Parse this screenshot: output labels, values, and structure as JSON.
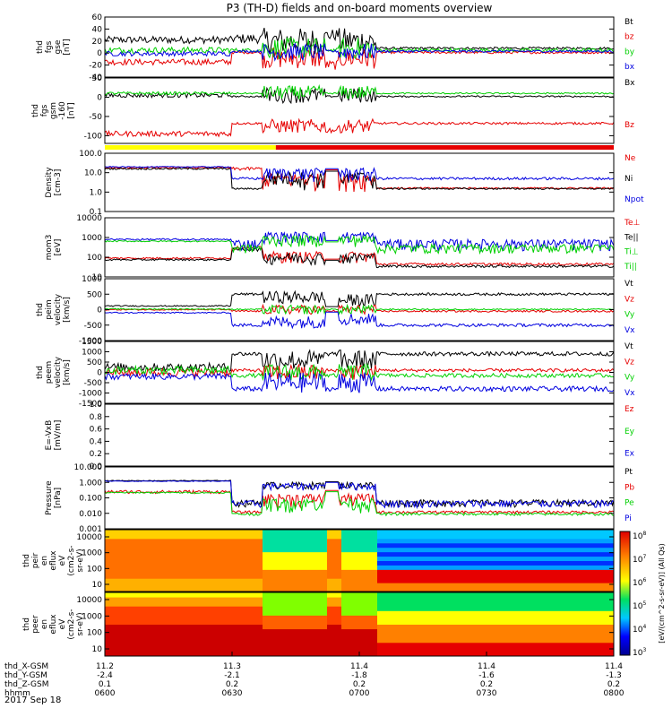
{
  "title": "P3 (TH-D) fields and on-board moments overview",
  "date": "2017 Sep 18",
  "colors": {
    "black": "#000000",
    "red": "#e60000",
    "green": "#00d000",
    "blue": "#0000e0"
  },
  "chart_data": {
    "type": "line",
    "x_axis": {
      "ticks": [
        "0600",
        "0630",
        "0700",
        "0730",
        "0800"
      ],
      "rows": [
        {
          "label": "thd_X-GSM",
          "values": [
            "11.2",
            "11.3",
            "11.4",
            "11.4",
            "11.4"
          ]
        },
        {
          "label": "thd_Y-GSM",
          "values": [
            "-2.4",
            "-2.1",
            "-1.8",
            "-1.6",
            "-1.3"
          ]
        },
        {
          "label": "thd_Z-GSM",
          "values": [
            "0.1",
            "0.2",
            "0.2",
            "0.2",
            "0.2"
          ]
        },
        {
          "label": "hhmm",
          "values": [
            "0600",
            "0630",
            "0700",
            "0730",
            "0800"
          ]
        }
      ]
    },
    "panels": [
      {
        "id": "fgs_gse",
        "ylabel": [
          "thd",
          "fgs",
          "gse",
          "[nT]"
        ],
        "scale": "linear",
        "ylim": [
          -40,
          60
        ],
        "ticks": [
          "60",
          "40",
          "20",
          "0",
          "-20",
          "-40"
        ],
        "legend": [
          "Bt",
          "bz",
          "by",
          "bx"
        ],
        "legend_colors": [
          "black",
          "red",
          "green",
          "blue"
        ]
      },
      {
        "id": "fgs_gsm",
        "ylabel": [
          "thd",
          "fgs",
          "gsm",
          "-160",
          "[nT]"
        ],
        "scale": "linear",
        "ylim": [
          -120,
          50
        ],
        "ticks": [
          "50",
          "0",
          "-50",
          "-100"
        ],
        "legend": [
          "Bx",
          "Bz"
        ],
        "legend_colors": [
          "black",
          "red"
        ]
      },
      {
        "id": "density",
        "ylabel": [
          "Density",
          "[cm-3]"
        ],
        "scale": "log",
        "ylim": [
          0.1,
          100
        ],
        "ticks": [
          "100.0",
          "10.0",
          "1.0",
          "0.1"
        ],
        "legend": [
          "Ne",
          "Ni",
          "Npot"
        ],
        "legend_colors": [
          "red",
          "black",
          "blue"
        ]
      },
      {
        "id": "temperature",
        "ylabel": [
          "mom3",
          "[eV]"
        ],
        "scale": "log",
        "ylim": [
          10,
          10000
        ],
        "ticks": [
          "10000",
          "1000",
          "100",
          "10"
        ],
        "legend": [
          "Te⊥",
          "Te||",
          "Ti⊥",
          "Ti||"
        ],
        "legend_colors": [
          "red",
          "black",
          "green",
          "green"
        ]
      },
      {
        "id": "peim_velocity",
        "ylabel": [
          "thd",
          "peim",
          "velocity",
          "[km/s]"
        ],
        "scale": "linear",
        "ylim": [
          -1000,
          1000
        ],
        "ticks": [
          "1000",
          "500",
          "0",
          "-500",
          "-1000"
        ],
        "legend": [
          "Vt",
          "Vz",
          "Vy",
          "Vx"
        ],
        "legend_colors": [
          "black",
          "red",
          "green",
          "blue"
        ]
      },
      {
        "id": "peem_velocity",
        "ylabel": [
          "thd",
          "peem",
          "velocity",
          "[km/s]"
        ],
        "scale": "linear",
        "ylim": [
          -1500,
          1500
        ],
        "ticks": [
          "1500",
          "1000",
          "500",
          "0",
          "-500",
          "-1000",
          "-1500"
        ],
        "legend": [
          "Vt",
          "Vz",
          "Vy",
          "Vx"
        ],
        "legend_colors": [
          "black",
          "red",
          "green",
          "blue"
        ]
      },
      {
        "id": "efield",
        "ylabel": [
          "E=-VxB",
          "[mV/m]"
        ],
        "scale": "linear",
        "ylim": [
          0,
          1
        ],
        "ticks": [
          "1.0",
          "0.8",
          "0.6",
          "0.4",
          "0.2",
          "0.0"
        ],
        "legend": [
          "Ez",
          "Ey",
          "Ex"
        ],
        "legend_colors": [
          "red",
          "green",
          "blue"
        ]
      },
      {
        "id": "pressure",
        "ylabel": [
          "Pressure",
          "[nPa]"
        ],
        "scale": "log",
        "ylim": [
          0.001,
          10
        ],
        "ticks": [
          "10.000",
          "1.000",
          "0.100",
          "0.010",
          "0.001"
        ],
        "legend": [
          "Pt",
          "Pb",
          "Pe",
          "Pi"
        ],
        "legend_colors": [
          "black",
          "red",
          "green",
          "blue"
        ]
      },
      {
        "id": "peir_spec",
        "ylabel": [
          "thd",
          "peir",
          "en",
          "eflux",
          "eV",
          "(cm2-s-",
          "sr-eV)"
        ],
        "scale": "log",
        "ylim": [
          5,
          30000
        ],
        "ticks": [
          "10000",
          "1000",
          "100",
          "10"
        ],
        "type": "heatmap"
      },
      {
        "id": "peer_spec",
        "ylabel": [
          "thd",
          "peer",
          "en",
          "eflux",
          "eV",
          "(cm2-s-",
          "sr-eV)"
        ],
        "scale": "log",
        "ylim": [
          5,
          30000
        ],
        "ticks": [
          "10000",
          "1000",
          "100",
          "10"
        ],
        "type": "heatmap"
      }
    ],
    "colorbar": {
      "ticks": [
        "10^8",
        "10^7",
        "10^6",
        "10^5",
        "10^4",
        "10^3"
      ],
      "label": "[eV/(cm^2-s-sr-eV)] (All Qs)"
    },
    "mode_bar": {
      "segments": [
        {
          "from": 0,
          "to": 0.336,
          "color": "#ffff00"
        },
        {
          "from": 0.336,
          "to": 1,
          "color": "#e60000"
        }
      ]
    }
  }
}
